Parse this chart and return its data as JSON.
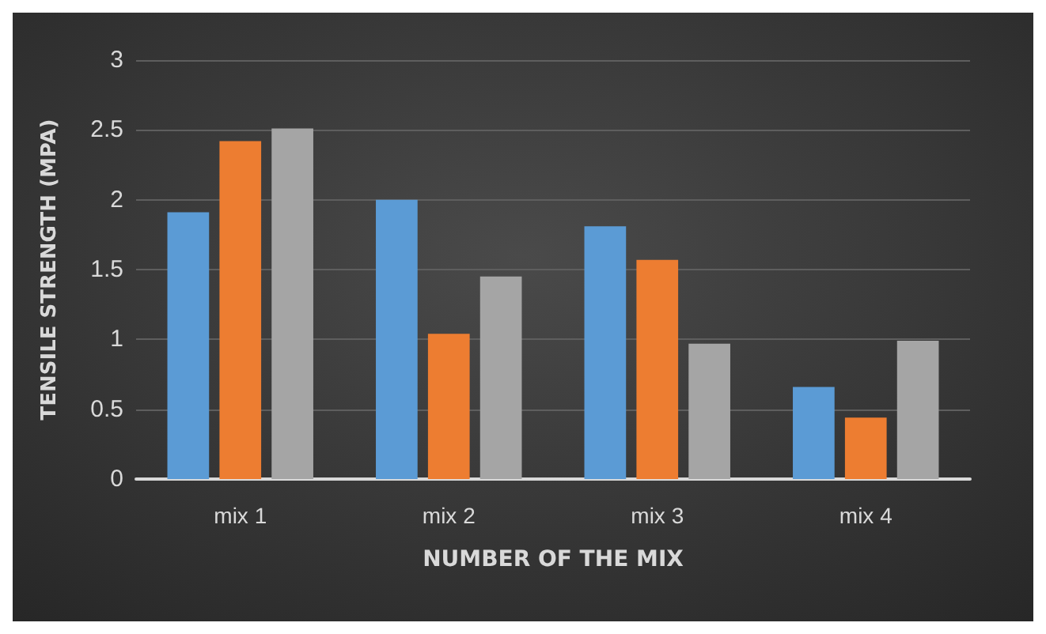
{
  "chart_data": {
    "type": "bar",
    "xlabel": "NUMBER OF THE MIX",
    "ylabel": "TENSILE STRENGTH (MPA)",
    "categories": [
      "mix 1",
      "mix 2",
      "mix 3",
      "mix 4"
    ],
    "series": [
      {
        "color": "#5b9bd5",
        "values": [
          1.91,
          2.0,
          1.81,
          0.66
        ]
      },
      {
        "color": "#ed7d31",
        "values": [
          2.42,
          1.04,
          1.57,
          0.44
        ]
      },
      {
        "color": "#a5a5a5",
        "values": [
          2.51,
          1.45,
          0.97,
          0.99
        ]
      }
    ],
    "ylim": [
      0,
      3
    ],
    "yticks": [
      0,
      0.5,
      1,
      1.5,
      2,
      2.5,
      3
    ],
    "grid": "y"
  }
}
